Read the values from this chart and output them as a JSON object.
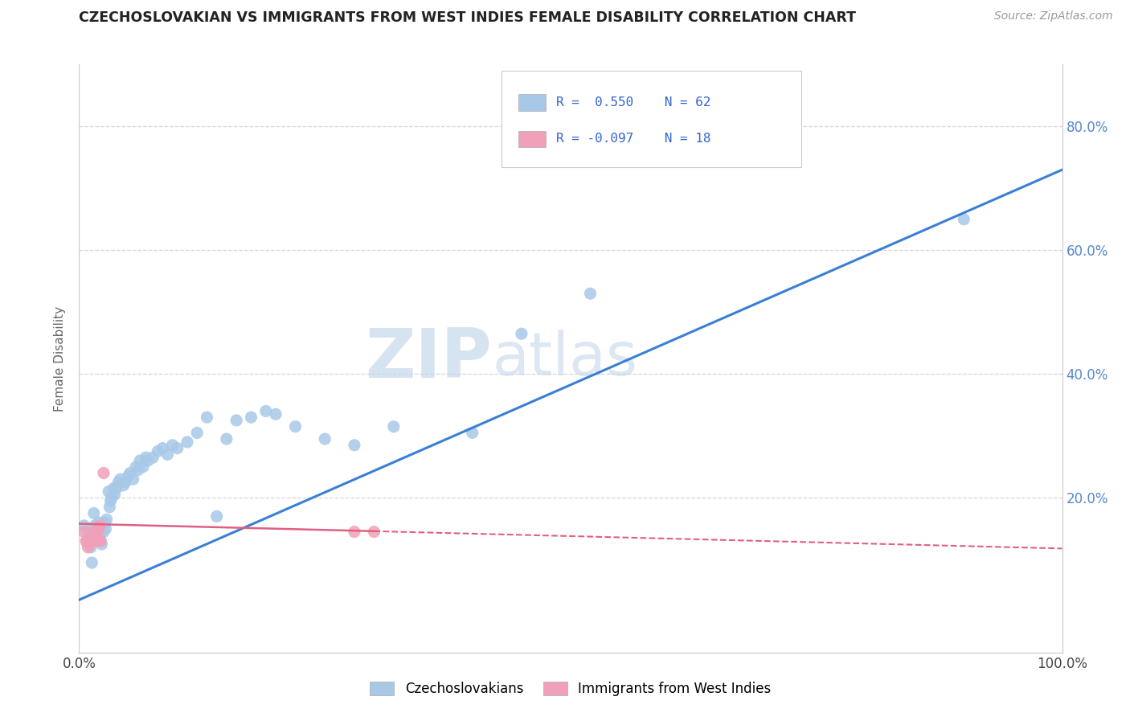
{
  "title": "CZECHOSLOVAKIAN VS IMMIGRANTS FROM WEST INDIES FEMALE DISABILITY CORRELATION CHART",
  "source": "Source: ZipAtlas.com",
  "ylabel": "Female Disability",
  "xlim": [
    0.0,
    1.0
  ],
  "ylim": [
    -0.05,
    0.9
  ],
  "background_color": "#ffffff",
  "grid_color": "#cccccc",
  "blue_color": "#a8c8e8",
  "pink_color": "#f0a0b8",
  "blue_line_color": "#3a7fd4",
  "pink_line_color": "#e06080",
  "legend_text_color": "#3366cc",
  "watermark_ZIP": "ZIP",
  "watermark_atlas": "atlas",
  "blue_trend_x0": 0.0,
  "blue_trend_y0": 0.035,
  "blue_trend_x1": 1.0,
  "blue_trend_y1": 0.73,
  "pink_trend_x0": 0.0,
  "pink_trend_y0": 0.158,
  "pink_trend_x1": 1.0,
  "pink_trend_y1": 0.118,
  "czechoslovakians_x": [
    0.005,
    0.008,
    0.01,
    0.012,
    0.013,
    0.015,
    0.016,
    0.017,
    0.018,
    0.019,
    0.02,
    0.021,
    0.022,
    0.023,
    0.024,
    0.025,
    0.026,
    0.027,
    0.028,
    0.03,
    0.031,
    0.032,
    0.033,
    0.035,
    0.036,
    0.038,
    0.04,
    0.042,
    0.045,
    0.047,
    0.05,
    0.052,
    0.055,
    0.058,
    0.06,
    0.062,
    0.065,
    0.068,
    0.07,
    0.075,
    0.08,
    0.085,
    0.09,
    0.095,
    0.1,
    0.11,
    0.12,
    0.13,
    0.14,
    0.15,
    0.16,
    0.175,
    0.19,
    0.2,
    0.22,
    0.25,
    0.28,
    0.32,
    0.4,
    0.45,
    0.52,
    0.9
  ],
  "czechoslovakians_y": [
    0.155,
    0.13,
    0.145,
    0.12,
    0.095,
    0.175,
    0.155,
    0.15,
    0.14,
    0.145,
    0.16,
    0.135,
    0.15,
    0.125,
    0.155,
    0.145,
    0.16,
    0.15,
    0.165,
    0.21,
    0.185,
    0.195,
    0.2,
    0.215,
    0.205,
    0.215,
    0.225,
    0.23,
    0.22,
    0.225,
    0.235,
    0.24,
    0.23,
    0.25,
    0.245,
    0.26,
    0.25,
    0.265,
    0.26,
    0.265,
    0.275,
    0.28,
    0.27,
    0.285,
    0.28,
    0.29,
    0.305,
    0.33,
    0.17,
    0.295,
    0.325,
    0.33,
    0.34,
    0.335,
    0.315,
    0.295,
    0.285,
    0.315,
    0.305,
    0.465,
    0.53,
    0.65
  ],
  "westindies_x": [
    0.005,
    0.007,
    0.009,
    0.01,
    0.011,
    0.013,
    0.014,
    0.015,
    0.016,
    0.017,
    0.018,
    0.019,
    0.02,
    0.021,
    0.022,
    0.025,
    0.28,
    0.3
  ],
  "westindies_y": [
    0.145,
    0.13,
    0.12,
    0.13,
    0.125,
    0.14,
    0.135,
    0.145,
    0.14,
    0.135,
    0.145,
    0.13,
    0.15,
    0.155,
    0.13,
    0.24,
    0.145,
    0.145
  ]
}
